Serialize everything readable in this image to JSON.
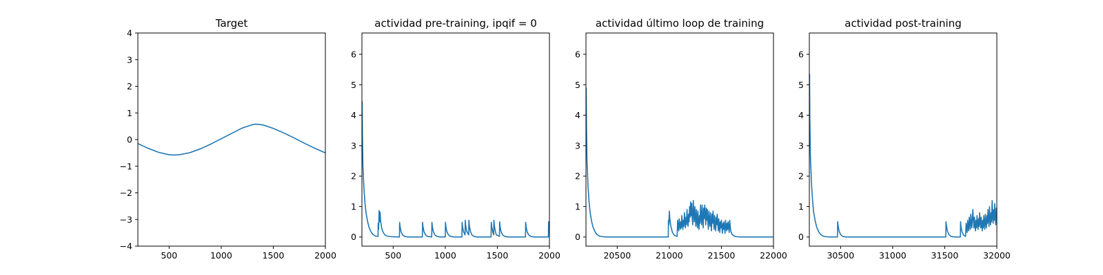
{
  "chart_data": [
    {
      "type": "line",
      "title": "Target",
      "xlim": [
        200,
        2000
      ],
      "ylim": [
        -4,
        4
      ],
      "xticks": [
        500,
        1000,
        1500,
        2000
      ],
      "xtick_labels": [
        "500",
        "1000",
        "1500",
        "2000"
      ],
      "yticks": [
        -4,
        -3,
        -2,
        -1,
        0,
        1,
        2,
        3,
        4
      ],
      "ytick_labels": [
        "−4",
        "−3",
        "−2",
        "−1",
        "0",
        "1",
        "2",
        "3",
        "4"
      ],
      "line_color": "#1f77b4",
      "series": [
        {
          "x": [
            200,
            300,
            400,
            500,
            540,
            600,
            700,
            800,
            900,
            1000,
            1100,
            1200,
            1300,
            1330,
            1400,
            1500,
            1600,
            1700,
            1800,
            1900,
            2000
          ],
          "y": [
            -0.15,
            -0.33,
            -0.48,
            -0.57,
            -0.58,
            -0.57,
            -0.49,
            -0.35,
            -0.17,
            0.03,
            0.23,
            0.43,
            0.56,
            0.58,
            0.55,
            0.42,
            0.25,
            0.06,
            -0.14,
            -0.33,
            -0.5
          ]
        }
      ]
    },
    {
      "type": "line",
      "title": "actividad pre-training, ipqif = 0",
      "xlim": [
        200,
        2000
      ],
      "ylim": [
        -0.3,
        6.7
      ],
      "xticks": [
        500,
        1000,
        1500,
        2000
      ],
      "xtick_labels": [
        "500",
        "1000",
        "1500",
        "2000"
      ],
      "yticks": [
        0,
        1,
        2,
        3,
        4,
        5,
        6
      ],
      "ytick_labels": [
        "0",
        "1",
        "2",
        "3",
        "4",
        "5",
        "6"
      ],
      "line_color": "#1f77b4",
      "series": [
        {
          "x": [
            200,
            202,
            205,
            210,
            220,
            230,
            240,
            255,
            270,
            290,
            310,
            330,
            355,
            356,
            358,
            360,
            365,
            368,
            372,
            374,
            380,
            390,
            400,
            420,
            440,
            480,
            560,
            562,
            566,
            575,
            590,
            610,
            640,
            780,
            782,
            786,
            795,
            810,
            830,
            870,
            872,
            876,
            885,
            900,
            920,
            950,
            1000,
            1002,
            1006,
            1015,
            1030,
            1050,
            1080,
            1160,
            1162,
            1166,
            1175,
            1190,
            1192,
            1196,
            1205,
            1225,
            1227,
            1231,
            1240,
            1255,
            1275,
            1300,
            1440,
            1442,
            1446,
            1455,
            1465,
            1467,
            1471,
            1480,
            1490,
            1520,
            1522,
            1526,
            1535,
            1550,
            1570,
            1600,
            1770,
            1772,
            1776,
            1785,
            1800,
            1820,
            1850,
            1990,
            1992,
            1996,
            2000
          ],
          "y": [
            4.45,
            4.45,
            3.3,
            2.3,
            1.55,
            1.1,
            0.78,
            0.5,
            0.3,
            0.15,
            0.07,
            0.03,
            0.02,
            0.45,
            0.3,
            0.25,
            0.87,
            0.55,
            0.5,
            0.82,
            0.5,
            0.3,
            0.18,
            0.07,
            0.03,
            0.01,
            0.0,
            0.48,
            0.35,
            0.18,
            0.07,
            0.02,
            0.0,
            0.0,
            0.48,
            0.35,
            0.18,
            0.07,
            0.02,
            0.0,
            0.48,
            0.35,
            0.18,
            0.07,
            0.02,
            0.0,
            0.0,
            0.48,
            0.35,
            0.18,
            0.07,
            0.02,
            0.0,
            0.0,
            0.48,
            0.35,
            0.18,
            0.07,
            0.55,
            0.38,
            0.2,
            0.07,
            0.55,
            0.38,
            0.2,
            0.07,
            0.02,
            0.0,
            0.0,
            0.48,
            0.35,
            0.18,
            0.07,
            0.55,
            0.38,
            0.2,
            0.07,
            0.02,
            0.5,
            0.36,
            0.18,
            0.07,
            0.02,
            0.0,
            0.0,
            0.48,
            0.35,
            0.18,
            0.07,
            0.02,
            0.0,
            0.0,
            0.5,
            0.3,
            0.2
          ]
        }
      ]
    },
    {
      "type": "line",
      "title": "actividad último loop de training",
      "xlim": [
        20200,
        22000
      ],
      "ylim": [
        -0.3,
        6.7
      ],
      "xticks": [
        20500,
        21000,
        21500,
        22000
      ],
      "xtick_labels": [
        "20500",
        "21000",
        "21500",
        "22000"
      ],
      "yticks": [
        0,
        1,
        2,
        3,
        4,
        5,
        6
      ],
      "ytick_labels": [
        "0",
        "1",
        "2",
        "3",
        "4",
        "5",
        "6"
      ],
      "line_color": "#1f77b4",
      "series": [
        {
          "x": [
            20200,
            20202,
            20205,
            20210,
            20220,
            20230,
            20240,
            20255,
            20270,
            20290,
            20310,
            20330,
            20360,
            20400,
            20990,
            20992,
            20996,
            21000,
            21005,
            21015,
            21030,
            21050,
            21075,
            21080,
            21085,
            21090,
            21095,
            21100,
            21105,
            21110,
            21115,
            21120,
            21125,
            21130,
            21135,
            21140,
            21145,
            21150,
            21155,
            21160,
            21165,
            21170,
            21175,
            21180,
            21185,
            21190,
            21195,
            21200,
            21205,
            21210,
            21215,
            21220,
            21225,
            21230,
            21235,
            21240,
            21245,
            21250,
            21255,
            21260,
            21265,
            21270,
            21275,
            21280,
            21285,
            21290,
            21295,
            21300,
            21305,
            21310,
            21315,
            21320,
            21325,
            21330,
            21335,
            21340,
            21345,
            21350,
            21355,
            21360,
            21365,
            21370,
            21375,
            21380,
            21385,
            21390,
            21395,
            21400,
            21405,
            21410,
            21415,
            21420,
            21425,
            21430,
            21435,
            21440,
            21445,
            21450,
            21455,
            21460,
            21465,
            21470,
            21475,
            21480,
            21485,
            21490,
            21495,
            21500,
            21505,
            21510,
            21515,
            21520,
            21525,
            21530,
            21535,
            21540,
            21545,
            21550,
            21555,
            21560,
            21565,
            21570,
            21575,
            21580,
            21585,
            21590,
            21600,
            21615,
            21630,
            21650,
            21680,
            21720,
            22000
          ],
          "y": [
            4.9,
            4.9,
            3.6,
            2.5,
            1.65,
            1.15,
            0.8,
            0.5,
            0.3,
            0.15,
            0.07,
            0.03,
            0.01,
            0.0,
            0.0,
            0.55,
            0.4,
            0.85,
            0.6,
            0.35,
            0.15,
            0.05,
            0.02,
            0.55,
            0.35,
            0.2,
            0.6,
            0.4,
            0.25,
            0.5,
            0.3,
            0.7,
            0.45,
            0.25,
            0.55,
            0.35,
            0.8,
            0.5,
            0.3,
            0.65,
            0.4,
            0.9,
            0.55,
            0.35,
            0.75,
            0.5,
            1.0,
            0.65,
            1.15,
            0.7,
            1.1,
            0.6,
            0.4,
            1.2,
            0.8,
            0.5,
            1.0,
            0.65,
            0.35,
            0.9,
            0.6,
            0.3,
            0.85,
            0.5,
            0.25,
            0.7,
            0.45,
            1.05,
            0.7,
            0.4,
            1.05,
            0.65,
            0.3,
            0.95,
            0.6,
            1.05,
            0.7,
            0.4,
            0.95,
            0.55,
            0.9,
            0.5,
            0.25,
            0.85,
            0.55,
            0.35,
            0.8,
            0.5,
            0.2,
            0.75,
            0.45,
            0.85,
            0.55,
            0.25,
            0.7,
            0.4,
            0.2,
            0.65,
            0.4,
            0.75,
            0.45,
            0.2,
            0.6,
            0.35,
            0.15,
            0.5,
            0.3,
            0.55,
            0.3,
            0.12,
            0.45,
            0.25,
            0.5,
            0.3,
            0.12,
            0.55,
            0.35,
            0.2,
            0.45,
            0.25,
            0.5,
            0.3,
            0.15,
            0.55,
            0.35,
            0.2,
            0.1,
            0.05,
            0.02,
            0.01,
            0.0,
            0.0,
            0.0
          ]
        }
      ]
    },
    {
      "type": "line",
      "title": "actividad post-training",
      "xlim": [
        30200,
        32000
      ],
      "ylim": [
        -0.3,
        6.7
      ],
      "xticks": [
        30500,
        31000,
        31500,
        32000
      ],
      "xtick_labels": [
        "30500",
        "31000",
        "31500",
        "32000"
      ],
      "yticks": [
        0,
        1,
        2,
        3,
        4,
        5,
        6
      ],
      "ytick_labels": [
        "0",
        "1",
        "2",
        "3",
        "4",
        "5",
        "6"
      ],
      "line_color": "#1f77b4",
      "series": [
        {
          "x": [
            30200,
            30202,
            30205,
            30210,
            30220,
            30230,
            30240,
            30255,
            30270,
            30290,
            30310,
            30330,
            30360,
            30400,
            30470,
            30472,
            30476,
            30485,
            30500,
            30520,
            30550,
            31510,
            31512,
            31516,
            31525,
            31540,
            31560,
            31590,
            31650,
            31652,
            31656,
            31665,
            31680,
            31700,
            31705,
            31710,
            31715,
            31720,
            31725,
            31730,
            31735,
            31740,
            31745,
            31750,
            31755,
            31760,
            31765,
            31770,
            31775,
            31780,
            31785,
            31790,
            31795,
            31800,
            31805,
            31810,
            31815,
            31820,
            31825,
            31830,
            31835,
            31840,
            31845,
            31850,
            31855,
            31860,
            31865,
            31870,
            31875,
            31880,
            31885,
            31890,
            31895,
            31900,
            31905,
            31910,
            31915,
            31920,
            31925,
            31930,
            31935,
            31940,
            31945,
            31950,
            31955,
            31960,
            31965,
            31970,
            31975,
            31980,
            31985,
            31990,
            31995,
            32000
          ],
          "y": [
            5.35,
            5.35,
            3.9,
            2.7,
            1.8,
            1.25,
            0.85,
            0.55,
            0.33,
            0.17,
            0.08,
            0.03,
            0.01,
            0.0,
            0.0,
            0.5,
            0.38,
            0.2,
            0.08,
            0.02,
            0.0,
            0.0,
            0.5,
            0.38,
            0.2,
            0.08,
            0.02,
            0.0,
            0.0,
            0.5,
            0.35,
            0.18,
            0.06,
            0.02,
            0.45,
            0.3,
            0.15,
            0.55,
            0.35,
            0.2,
            0.65,
            0.4,
            0.25,
            0.75,
            0.5,
            0.3,
            0.6,
            0.9,
            0.55,
            0.3,
            0.65,
            0.4,
            0.2,
            0.55,
            0.3,
            0.7,
            0.45,
            0.25,
            0.6,
            0.35,
            0.8,
            0.5,
            0.3,
            0.65,
            0.4,
            0.2,
            0.55,
            0.3,
            0.7,
            0.45,
            0.25,
            0.75,
            0.5,
            0.3,
            0.7,
            0.45,
            0.9,
            0.55,
            0.35,
            1.0,
            0.6,
            0.4,
            0.8,
            0.5,
            1.2,
            0.7,
            0.45,
            0.9,
            0.55,
            1.1,
            0.65,
            0.4,
            0.95,
            0.5
          ]
        }
      ]
    }
  ]
}
